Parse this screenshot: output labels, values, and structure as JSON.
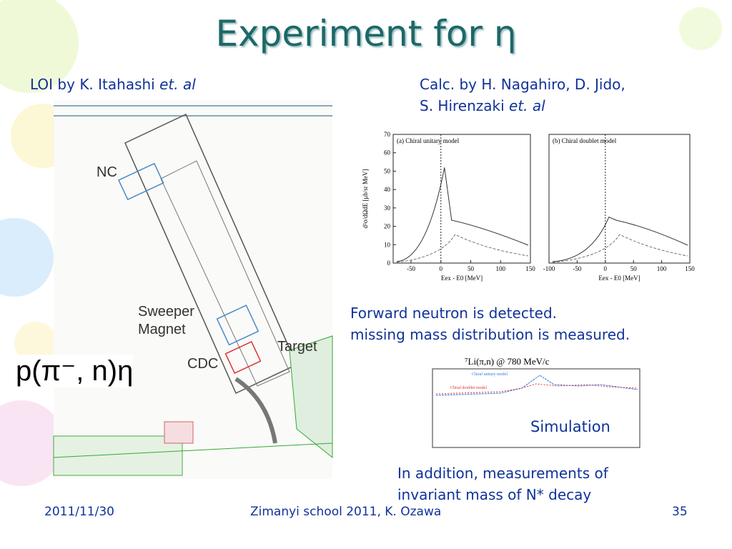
{
  "title": "Experiment for η",
  "left_caption": {
    "text": "LOI by K. Itahashi",
    "italic": "et. al"
  },
  "right_caption": {
    "line1": "Calc. by H. Nagahiro, D. Jido,",
    "line2": "S. Hirenzaki",
    "italic": "et. al"
  },
  "detector": {
    "labels": [
      "NC",
      "Sweeper",
      "Magnet",
      "Target",
      "CDC"
    ]
  },
  "reaction": "p(π⁻, n)η",
  "theory_plots": {
    "y_label": "d²σ/dΩdE [μb/sr MeV]",
    "yticks": [
      0,
      10,
      20,
      30,
      40,
      50,
      60,
      70
    ],
    "panels": [
      {
        "title": "(a) Chiral unitary model",
        "xticks": [
          -50,
          0,
          50,
          100,
          150
        ],
        "x_label": "Eex - E0 [MeV]"
      },
      {
        "title": "(b) Chiral doublet model",
        "xticks": [
          -100,
          -50,
          0,
          50,
          100,
          150
        ],
        "x_label": "Eex - E0 [MeV]"
      }
    ]
  },
  "forward_note": [
    "Forward neutron is detected.",
    "missing mass distribution is measured."
  ],
  "simulation": {
    "title": "⁷Li(π,n) @ 780 MeV/c",
    "legend": [
      "Chiral unitary model",
      "Chiral doublet model"
    ],
    "label": "Simulation"
  },
  "addition_note": [
    "In addition, measurements of",
    "invariant mass of N* decay"
  ],
  "footer": {
    "date": "2011/11/30",
    "event": "Zimanyi school 2011, K. Ozawa",
    "page": "35"
  }
}
